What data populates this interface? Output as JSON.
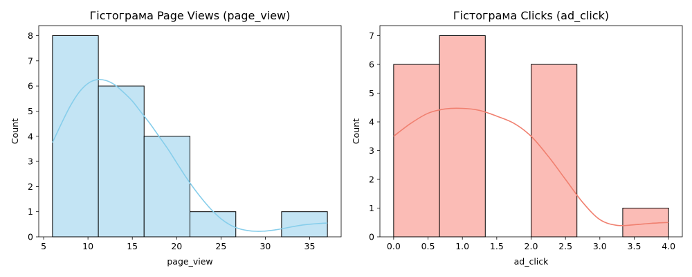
{
  "chart_data": [
    {
      "type": "bar",
      "title": "Гістограма Page Views (page_view)",
      "xlabel": "page_view",
      "ylabel": "Count",
      "xlim": [
        4.45,
        38.55
      ],
      "ylim": [
        0,
        8.4
      ],
      "xticks": [
        5,
        10,
        15,
        20,
        25,
        30,
        35
      ],
      "yticks": [
        0,
        1,
        2,
        3,
        4,
        5,
        6,
        7,
        8
      ],
      "bin_edges": [
        6,
        11.17,
        16.33,
        21.5,
        26.67,
        31.83,
        37
      ],
      "counts": [
        8,
        6,
        4,
        1,
        0,
        1
      ],
      "colors": {
        "bar": "#c3e4f4",
        "kde": "#87ceeb",
        "edge": "#000000"
      },
      "kde": {
        "x": [
          6,
          7,
          8,
          9,
          10,
          11,
          12,
          13,
          14,
          15,
          16,
          17,
          18,
          19,
          20,
          21,
          22,
          23,
          24,
          25,
          26,
          27,
          28,
          29,
          30,
          31,
          32,
          33,
          34,
          35,
          36,
          37
        ],
        "y": [
          3.75,
          4.5,
          5.2,
          5.75,
          6.1,
          6.25,
          6.22,
          6.05,
          5.75,
          5.4,
          4.95,
          4.5,
          4.0,
          3.5,
          2.95,
          2.4,
          1.9,
          1.45,
          1.05,
          0.72,
          0.48,
          0.33,
          0.25,
          0.22,
          0.23,
          0.27,
          0.33,
          0.4,
          0.46,
          0.5,
          0.53,
          0.55
        ]
      }
    },
    {
      "type": "bar",
      "title": "Гістограма Clicks (ad_click)",
      "xlabel": "ad_click",
      "ylabel": "Count",
      "xlim": [
        -0.2,
        4.2
      ],
      "ylim": [
        0,
        7.35
      ],
      "xticks": [
        0.0,
        0.5,
        1.0,
        1.5,
        2.0,
        2.5,
        3.0,
        3.5,
        4.0
      ],
      "yticks": [
        0,
        1,
        2,
        3,
        4,
        5,
        6,
        7
      ],
      "bin_edges": [
        0,
        0.6667,
        1.3333,
        2.0,
        2.6667,
        3.3333,
        4.0
      ],
      "counts": [
        6,
        7,
        0,
        6,
        0,
        1
      ],
      "colors": {
        "bar": "#fbbcb6",
        "kde": "#f08070",
        "edge": "#000000"
      },
      "kde": {
        "x": [
          0,
          0.25,
          0.5,
          0.75,
          1.0,
          1.25,
          1.5,
          1.75,
          2.0,
          2.25,
          2.5,
          2.75,
          3.0,
          3.25,
          3.5,
          3.75,
          4.0
        ],
        "y": [
          3.5,
          3.95,
          4.3,
          4.45,
          4.47,
          4.4,
          4.2,
          3.95,
          3.5,
          2.8,
          2.0,
          1.2,
          0.6,
          0.4,
          0.42,
          0.47,
          0.5
        ]
      }
    }
  ]
}
